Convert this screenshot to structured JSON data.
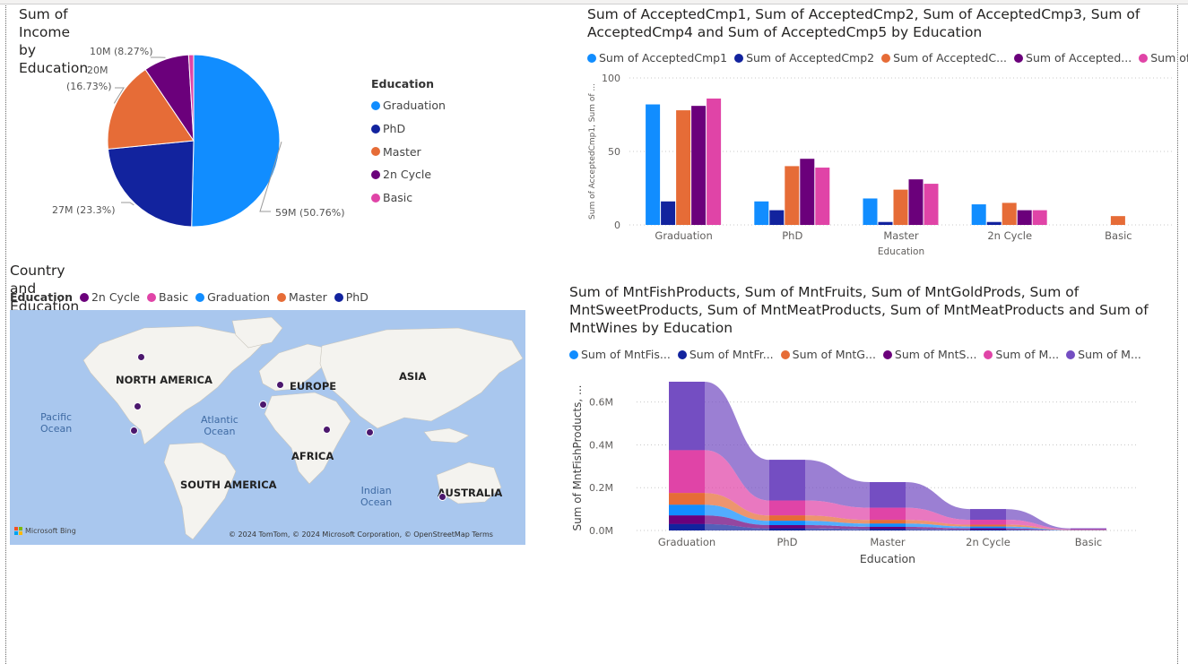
{
  "colors": {
    "graduation": "#118DFF",
    "phd": "#12239E",
    "master": "#E66C37",
    "cycle2": "#6B007B",
    "basic": "#E044A7",
    "purple": "#744EC2"
  },
  "pie_legend": {
    "title": "Education",
    "items": [
      {
        "label": "Graduation",
        "color": "#118DFF"
      },
      {
        "label": "PhD",
        "color": "#12239E"
      },
      {
        "label": "Master",
        "color": "#E66C37"
      },
      {
        "label": "2n Cycle",
        "color": "#6B007B"
      },
      {
        "label": "Basic",
        "color": "#E044A7"
      }
    ]
  },
  "bar_legend": {
    "items": [
      {
        "label": "Sum of AcceptedCmp1",
        "color": "#118DFF"
      },
      {
        "label": "Sum of AcceptedCmp2",
        "color": "#12239E"
      },
      {
        "label": "Sum of AcceptedC...",
        "color": "#E66C37"
      },
      {
        "label": "Sum of Accepted...",
        "color": "#6B007B"
      },
      {
        "label": "Sum of Accept...",
        "color": "#E044A7"
      }
    ]
  },
  "map": {
    "title": "Country and Education",
    "legend_title": "Education",
    "legend_items": [
      {
        "label": "2n Cycle",
        "color": "#6B007B"
      },
      {
        "label": "Basic",
        "color": "#E044A7"
      },
      {
        "label": "Graduation",
        "color": "#118DFF"
      },
      {
        "label": "Master",
        "color": "#E66C37"
      },
      {
        "label": "PhD",
        "color": "#12239E"
      }
    ],
    "labels": {
      "north_america": "NORTH AMERICA",
      "europe": "EUROPE",
      "asia": "ASIA",
      "africa": "AFRICA",
      "south_america": "SOUTH AMERICA",
      "australia": "AUSTRALIA",
      "pacific": "Pacific\nOcean",
      "atlantic": "Atlantic\nOcean",
      "indian": "Indian\nOcean"
    },
    "brand": "Microsoft Bing",
    "attribution": "© 2024 TomTom, © 2024 Microsoft Corporation, © OpenStreetMap  Terms"
  },
  "area_legend": {
    "items": [
      {
        "label": "Sum of MntFis...",
        "color": "#118DFF"
      },
      {
        "label": "Sum of MntFr...",
        "color": "#12239E"
      },
      {
        "label": "Sum of MntG...",
        "color": "#E66C37"
      },
      {
        "label": "Sum of MntS...",
        "color": "#6B007B"
      },
      {
        "label": "Sum of M...",
        "color": "#E044A7"
      },
      {
        "label": "Sum of M...",
        "color": "#744EC2"
      }
    ]
  },
  "chart_data": [
    {
      "type": "pie",
      "title": "Sum of Income by Education",
      "categories": [
        "Graduation",
        "PhD",
        "Master",
        "2n Cycle",
        "Basic"
      ],
      "values": [
        59,
        27,
        20,
        10,
        1.1
      ],
      "data_labels": [
        "59M (50.76%)",
        "27M (23.3%)",
        "20M (16.73%)",
        "10M (8.27%)",
        ""
      ],
      "legend_title": "Education",
      "legend_position": "right"
    },
    {
      "type": "bar",
      "title": "Sum of AcceptedCmp1, Sum of AcceptedCmp2, Sum of AcceptedCmp3, Sum of AcceptedCmp4 and Sum of AcceptedCmp5 by Education",
      "categories": [
        "Graduation",
        "PhD",
        "Master",
        "2n Cycle",
        "Basic"
      ],
      "series": [
        {
          "values": [
            82,
            16,
            18,
            14,
            0
          ]
        },
        {
          "values": [
            16,
            10,
            2,
            2,
            0
          ]
        },
        {
          "values": [
            78,
            40,
            24,
            15,
            6
          ]
        },
        {
          "values": [
            81,
            45,
            31,
            10,
            0
          ]
        },
        {
          "values": [
            86,
            39,
            28,
            10,
            0
          ]
        }
      ],
      "xlabel": "Education",
      "ylabel": "Sum of AcceptedCmp1, Sum of ...",
      "yticks": [
        "0",
        "50",
        "100"
      ],
      "ylim": [
        0,
        100
      ],
      "grid": true,
      "legend_position": "top"
    },
    {
      "type": "area",
      "title": "Sum of MntFishProducts, Sum of MntFruits, Sum of MntGoldProds, Sum of MntSweetProducts, Sum of MntMeatProducts, Sum of MntMeatProducts and Sum of MntWines by Education",
      "categories": [
        "Graduation",
        "PhD",
        "Master",
        "2n Cycle",
        "Basic"
      ],
      "series": [
        {
          "color": "#12239E",
          "values": [
            0.03,
            0.01,
            0.007,
            0.004,
            0.0005
          ]
        },
        {
          "color": "#6B007B",
          "values": [
            0.04,
            0.015,
            0.01,
            0.006,
            0.0005
          ]
        },
        {
          "color": "#118DFF",
          "values": [
            0.05,
            0.02,
            0.015,
            0.008,
            0.001
          ]
        },
        {
          "color": "#E66C37",
          "values": [
            0.055,
            0.025,
            0.017,
            0.009,
            0.001
          ]
        },
        {
          "color": "#E044A7",
          "values": [
            0.2,
            0.07,
            0.057,
            0.023,
            0.003
          ]
        },
        {
          "color": "#744EC2",
          "values": [
            0.32,
            0.19,
            0.12,
            0.05,
            0.004
          ]
        }
      ],
      "xlabel": "Education",
      "ylabel": "Sum of MntFishProducts, ...",
      "yticks": [
        "0.0M",
        "0.2M",
        "0.4M",
        "0.6M"
      ],
      "ylim": [
        0,
        0.72
      ],
      "grid": true,
      "legend_position": "top"
    }
  ]
}
